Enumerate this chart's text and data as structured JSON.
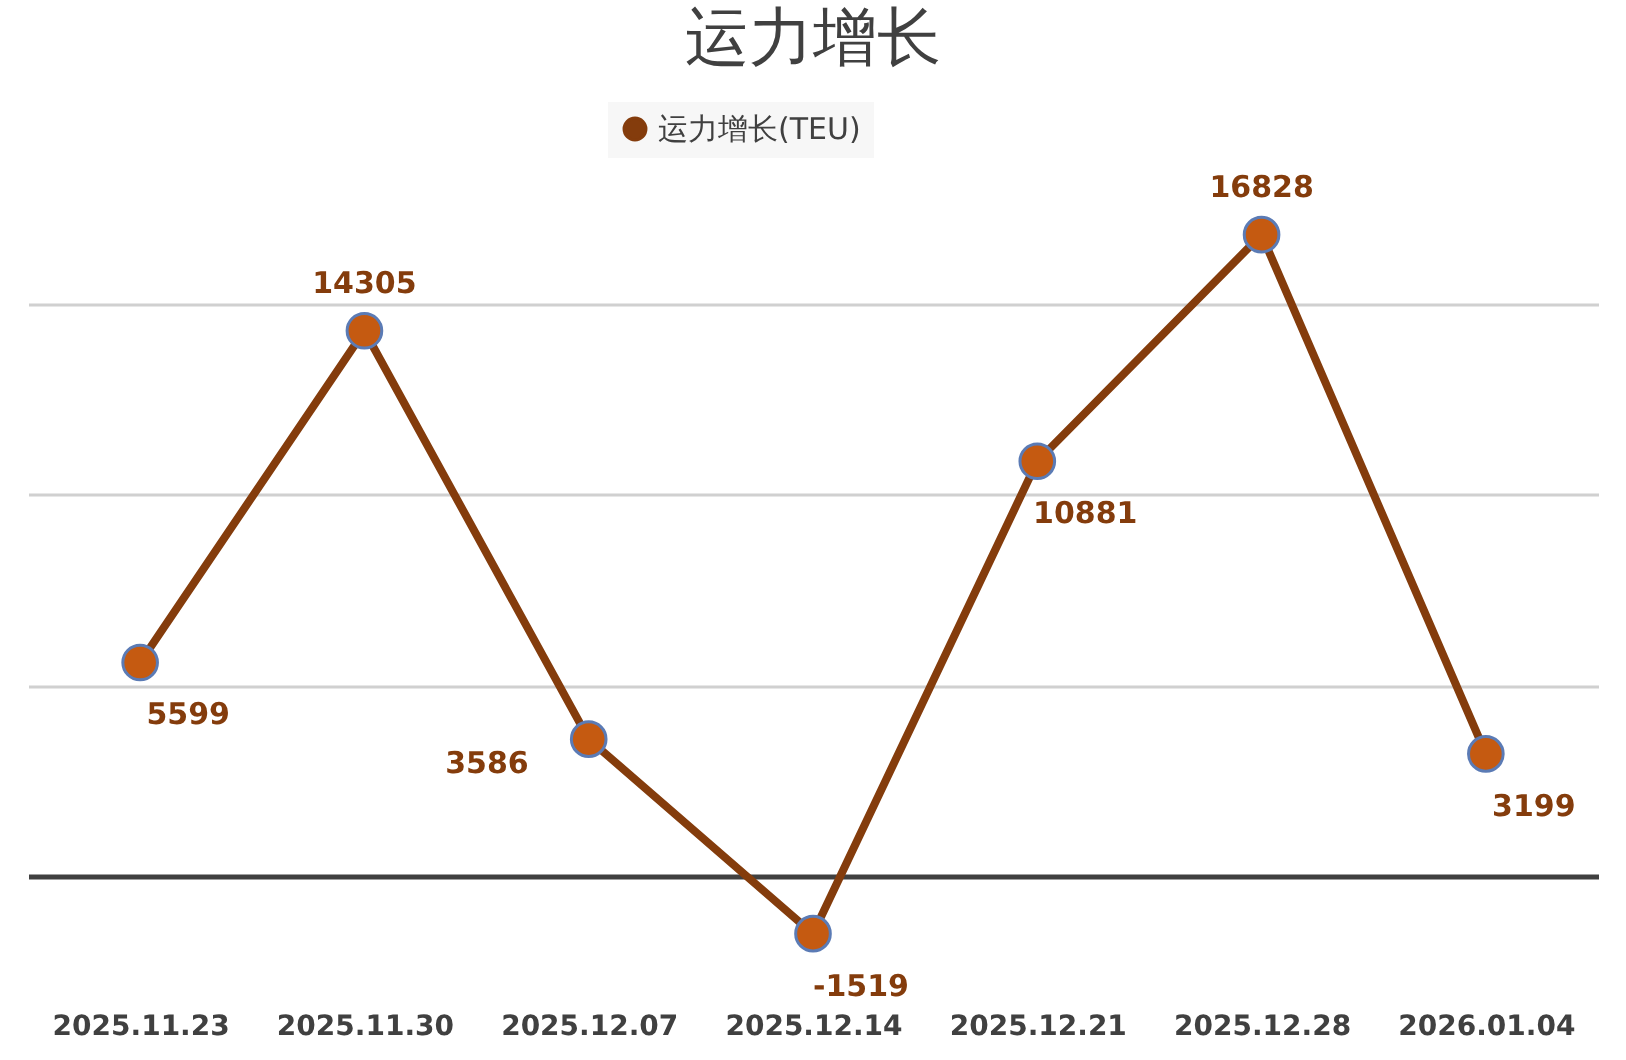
{
  "chart_data": {
    "type": "line",
    "title": "运力增长",
    "categories": [
      "2025.11.23",
      "2025.11.30",
      "2025.12.07",
      "2025.12.14",
      "2025.12.21",
      "2025.12.28",
      "2026.01.04"
    ],
    "series": [
      {
        "name": "运力增长(TEU)",
        "color": "#843c0c",
        "values": [
          5599,
          14305,
          3586,
          -1519,
          10881,
          16828,
          3199
        ]
      }
    ],
    "grid": "y",
    "legend": "top",
    "marker": "circle",
    "data_labels": true,
    "tick_labels": "x"
  }
}
